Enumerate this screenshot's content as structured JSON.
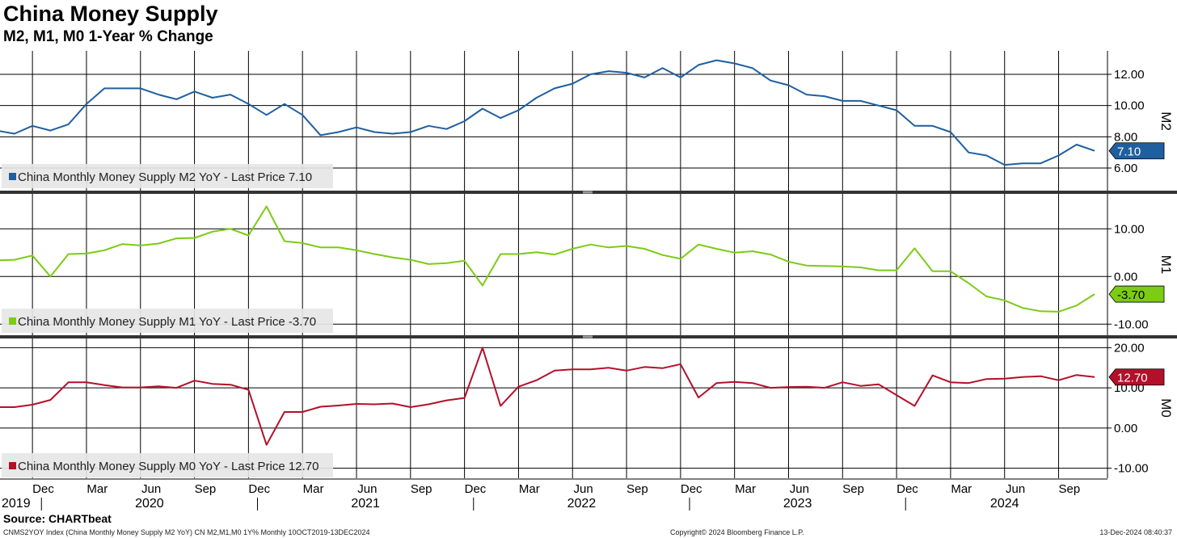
{
  "title": "China Money Supply",
  "subtitle": "M2, M1, M0 1-Year % Change",
  "source": "Source: CHARTbeat",
  "footer": {
    "left": "CNMS2YOY Index (China Monthly Money Supply M2 YoY) CN M2,M1,M0 1Y%  Monthly 10OCT2019-13DEC2024",
    "center": "Copyright© 2024 Bloomberg Finance L.P.",
    "right": "13-Dec-2024 08:40:37"
  },
  "colors": {
    "m2": "#1f5fa0",
    "m1": "#7ccb14",
    "m0": "#b3102a"
  },
  "chart_data": [
    {
      "type": "line",
      "series": [
        {
          "name": "China Monthly Money Supply M2 YoY - Last Price 7.10",
          "axis_label": "M2",
          "last_value": "7.10",
          "values": [
            8.4,
            8.2,
            8.7,
            8.4,
            8.8,
            10.1,
            11.1,
            11.1,
            11.1,
            10.7,
            10.4,
            10.9,
            10.5,
            10.7,
            10.1,
            9.4,
            10.1,
            9.4,
            8.1,
            8.3,
            8.6,
            8.3,
            8.2,
            8.3,
            8.7,
            8.5,
            9.0,
            9.8,
            9.2,
            9.7,
            10.5,
            11.1,
            11.4,
            12.0,
            12.2,
            12.1,
            11.8,
            12.4,
            11.8,
            12.6,
            12.9,
            12.7,
            12.4,
            11.6,
            11.3,
            10.7,
            10.6,
            10.3,
            10.3,
            10.0,
            9.7,
            8.7,
            8.7,
            8.3,
            7.0,
            6.8,
            6.2,
            6.3,
            6.3,
            6.8,
            7.5,
            7.1
          ]
        }
      ],
      "ylim": [
        4.5,
        13.5
      ],
      "yticks": [
        "12.00",
        "10.00",
        "8.00",
        "6.00"
      ]
    },
    {
      "type": "line",
      "series": [
        {
          "name": "China Monthly Money Supply M1 YoY - Last Price -3.70",
          "axis_label": "M1",
          "last_value": "-3.70",
          "values": [
            3.4,
            3.5,
            4.4,
            0.0,
            4.7,
            4.8,
            5.5,
            6.8,
            6.5,
            6.9,
            8.0,
            8.1,
            9.4,
            10.0,
            8.6,
            14.7,
            7.4,
            7.0,
            6.1,
            6.1,
            5.5,
            4.7,
            4.0,
            3.5,
            2.6,
            2.8,
            3.3,
            -1.9,
            4.7,
            4.7,
            5.1,
            4.6,
            5.8,
            6.7,
            6.1,
            6.4,
            5.8,
            4.5,
            3.7,
            6.7,
            5.8,
            5.0,
            5.3,
            4.6,
            3.1,
            2.3,
            2.2,
            2.1,
            1.9,
            1.3,
            1.3,
            5.9,
            1.1,
            1.1,
            -1.4,
            -4.2,
            -5.0,
            -6.6,
            -7.3,
            -7.4,
            -6.1,
            -3.7
          ]
        }
      ],
      "ylim": [
        -12.5,
        17.5
      ],
      "yticks": [
        "10.00",
        "0.00",
        "-10.00"
      ]
    },
    {
      "type": "line",
      "series": [
        {
          "name": "China Monthly Money Supply M0 YoY - Last Price 12.70",
          "axis_label": "M0",
          "last_value": "12.70",
          "values": [
            5.2,
            5.2,
            5.8,
            7.0,
            11.4,
            11.4,
            10.7,
            10.1,
            10.1,
            10.4,
            10.0,
            11.8,
            11.0,
            10.8,
            9.5,
            -4.2,
            4.0,
            4.0,
            5.3,
            5.6,
            6.0,
            5.9,
            6.1,
            5.2,
            5.9,
            6.9,
            7.5,
            20.0,
            5.5,
            10.3,
            11.9,
            14.3,
            14.6,
            14.6,
            15.0,
            14.3,
            15.2,
            14.9,
            15.9,
            7.6,
            11.2,
            11.5,
            11.2,
            10.0,
            10.2,
            10.3,
            10.0,
            11.4,
            10.5,
            10.9,
            8.2,
            5.5,
            13.1,
            11.4,
            11.2,
            12.2,
            12.3,
            12.7,
            12.9,
            11.9,
            13.2,
            12.7
          ]
        }
      ],
      "ylim": [
        -12.5,
        22.5
      ],
      "yticks": [
        "20.00",
        "10.00",
        "0.00",
        "-10.00"
      ]
    }
  ],
  "x_axis": {
    "months": [
      "Dec",
      "Mar",
      "Jun",
      "Sep",
      "Dec",
      "Mar",
      "Jun",
      "Sep",
      "Dec",
      "Mar",
      "Jun",
      "Sep",
      "Dec",
      "Mar",
      "Jun",
      "Sep",
      "Dec",
      "Mar",
      "Jun",
      "Sep"
    ],
    "years": [
      "2019",
      "2020",
      "2021",
      "2022",
      "2023",
      "2024"
    ]
  }
}
